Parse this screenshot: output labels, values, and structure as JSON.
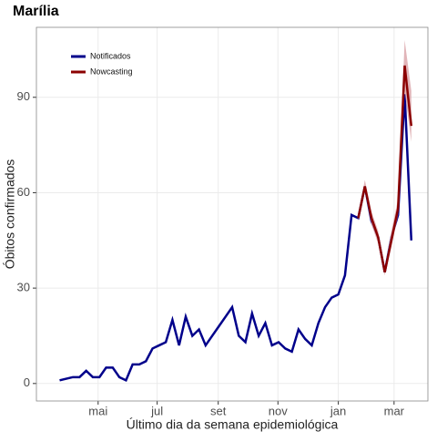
{
  "chart_data": {
    "type": "line",
    "title": "Marília",
    "x_label": "Último dia da semana epidemiológica",
    "y_label": "Óbitos confirmados",
    "xlim": [
      -3.5,
      55.5
    ],
    "ylim": [
      -5.5,
      112
    ],
    "xticks": [
      {
        "value": 5.8,
        "label": "mai"
      },
      {
        "value": 14.7,
        "label": "jul"
      },
      {
        "value": 23.9,
        "label": "set"
      },
      {
        "value": 32.9,
        "label": "nov"
      },
      {
        "value": 42,
        "label": "jan"
      },
      {
        "value": 50.4,
        "label": "mar"
      }
    ],
    "yticks": [
      0,
      30,
      60,
      90
    ],
    "grid": true,
    "legend": "top-left",
    "series": [
      {
        "name": "Notificados",
        "color": "#00008b",
        "x": [
          0,
          1,
          2,
          3,
          4,
          5,
          6,
          7,
          8,
          9,
          10,
          11,
          12,
          13,
          14,
          15,
          16,
          17,
          18,
          19,
          20,
          21,
          22,
          23,
          24,
          25,
          26,
          27,
          28,
          29,
          30,
          31,
          32,
          33,
          34,
          35,
          36,
          37,
          38,
          39,
          40,
          41,
          42,
          43,
          44,
          45,
          46,
          47,
          48,
          49,
          50,
          51,
          52,
          53
        ],
        "values": [
          1,
          1.5,
          2,
          2,
          4,
          2,
          2,
          5,
          5,
          2,
          1,
          6,
          6,
          7,
          11,
          12,
          13,
          20,
          12,
          21,
          15,
          17,
          12,
          15,
          18,
          21,
          24,
          15,
          13,
          22,
          15,
          19,
          12,
          13,
          11,
          10,
          17,
          14,
          12,
          19,
          24,
          27,
          28,
          34,
          53,
          52,
          62,
          51,
          46,
          35,
          46,
          53,
          91,
          45
        ]
      },
      {
        "name": "Nowcasting",
        "color": "#8b0000",
        "band_color": "#d9a3a8",
        "x": [
          45,
          46,
          47,
          48,
          49,
          50,
          51,
          52,
          53
        ],
        "values": [
          52,
          62,
          52,
          46,
          35,
          45,
          55,
          100,
          81
        ],
        "lower": [
          51,
          61,
          50,
          44,
          34,
          43,
          53,
          92,
          76
        ],
        "upper": [
          53,
          64,
          54,
          48,
          36,
          48,
          58,
          108,
          92
        ]
      }
    ]
  }
}
